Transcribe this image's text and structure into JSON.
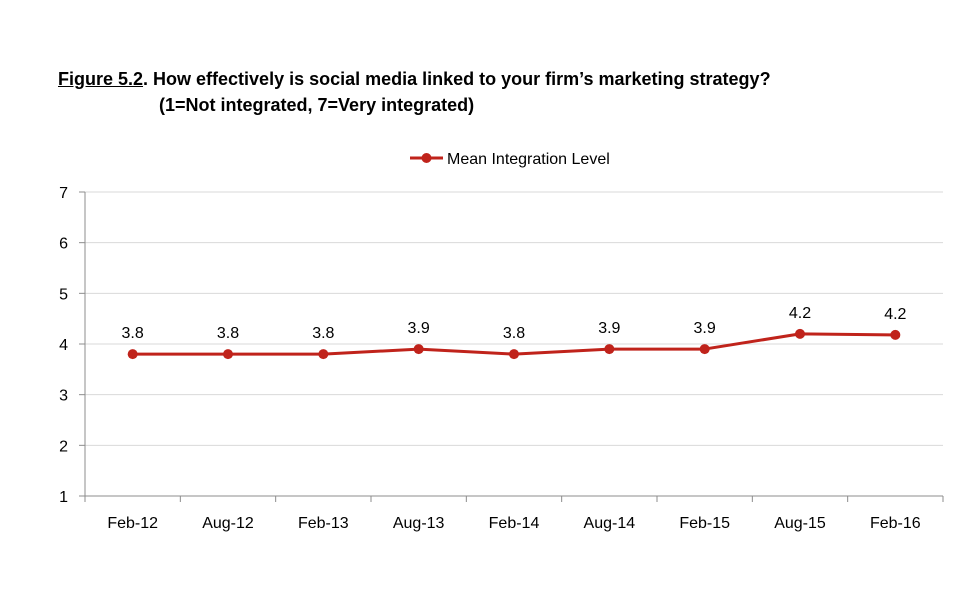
{
  "figure": {
    "label": "Figure 5.2",
    "title_rest": ".  How effectively is social media linked to your firm’s marketing strategy?",
    "subtitle": "(1=Not integrated,  7=Very integrated)"
  },
  "chart_data": {
    "type": "line",
    "categories": [
      "Feb-12",
      "Aug-12",
      "Feb-13",
      "Aug-13",
      "Feb-14",
      "Aug-14",
      "Feb-15",
      "Aug-15",
      "Feb-16"
    ],
    "series": [
      {
        "name": "Mean Integration Level",
        "values": [
          3.8,
          3.8,
          3.8,
          3.9,
          3.8,
          3.9,
          3.9,
          4.2,
          4.18
        ],
        "labels": [
          "3.8",
          "3.8",
          "3.8",
          "3.9",
          "3.8",
          "3.9",
          "3.9",
          "4.2",
          "4.2"
        ],
        "color": "#c0231b"
      }
    ],
    "ylim": [
      1,
      7
    ],
    "yticks": [
      "1",
      "2",
      "3",
      "4",
      "5",
      "6",
      "7"
    ],
    "grid": "horizontal",
    "legend_position": "top-center",
    "colors": {
      "gridline": "#d9d9d9",
      "axis": "#8c8c8c"
    }
  }
}
